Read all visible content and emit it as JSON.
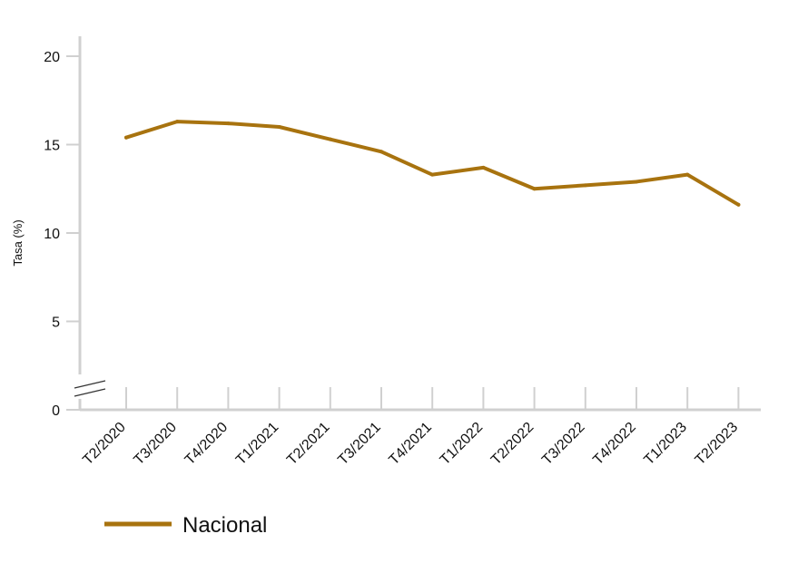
{
  "chart_data": {
    "type": "line",
    "title": "",
    "xlabel": "",
    "ylabel": "Tasa (%)",
    "ylim": [
      0,
      20
    ],
    "yticks": [
      "0",
      "5",
      "10",
      "15",
      "20"
    ],
    "axis_break": true,
    "grid": false,
    "legend_position": "bottom-left",
    "categories": [
      "T2/2020",
      "T3/2020",
      "T4/2020",
      "T1/2021",
      "T2/2021",
      "T3/2021",
      "T4/2021",
      "T1/2022",
      "T2/2022",
      "T3/2022",
      "T4/2022",
      "T1/2023",
      "T2/2023"
    ],
    "series": [
      {
        "name": "Nacional",
        "color": "#A8730F",
        "values": [
          15.4,
          16.3,
          16.2,
          16.0,
          15.3,
          14.6,
          13.3,
          13.7,
          12.5,
          12.7,
          12.9,
          13.3,
          11.6
        ]
      }
    ]
  },
  "colors": {
    "axis": "#d0d0d0",
    "text": "#111111"
  }
}
